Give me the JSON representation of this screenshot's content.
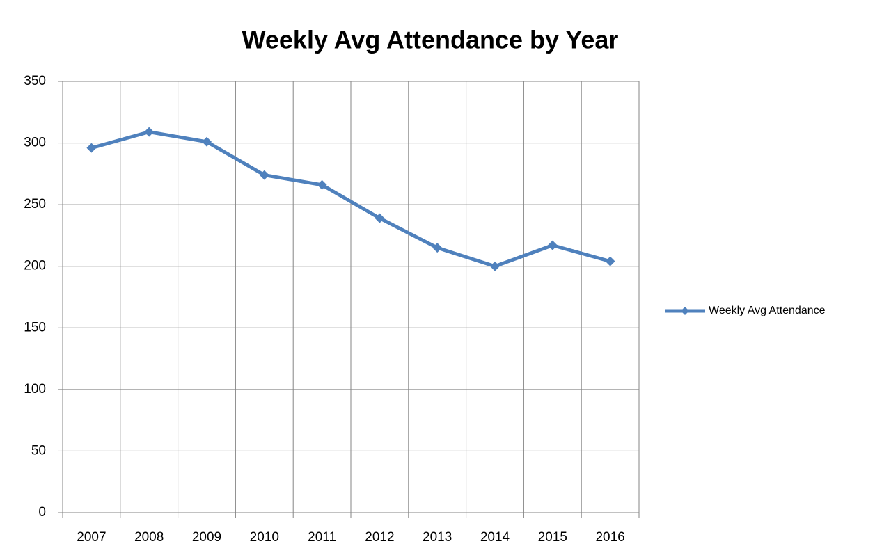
{
  "chart_data": {
    "type": "line",
    "title": "Weekly Avg Attendance by Year",
    "categories": [
      "2007",
      "2008",
      "2009",
      "2010",
      "2011",
      "2012",
      "2013",
      "2014",
      "2015",
      "2016"
    ],
    "series": [
      {
        "name": "Weekly Avg Attendance",
        "color": "#4f81bd",
        "values": [
          296,
          309,
          301,
          274,
          266,
          239,
          215,
          200,
          217,
          204
        ]
      }
    ],
    "ylim": [
      0,
      350
    ],
    "yticks": [
      0,
      50,
      100,
      150,
      200,
      250,
      300,
      350
    ],
    "grid": true,
    "legend": "right"
  }
}
